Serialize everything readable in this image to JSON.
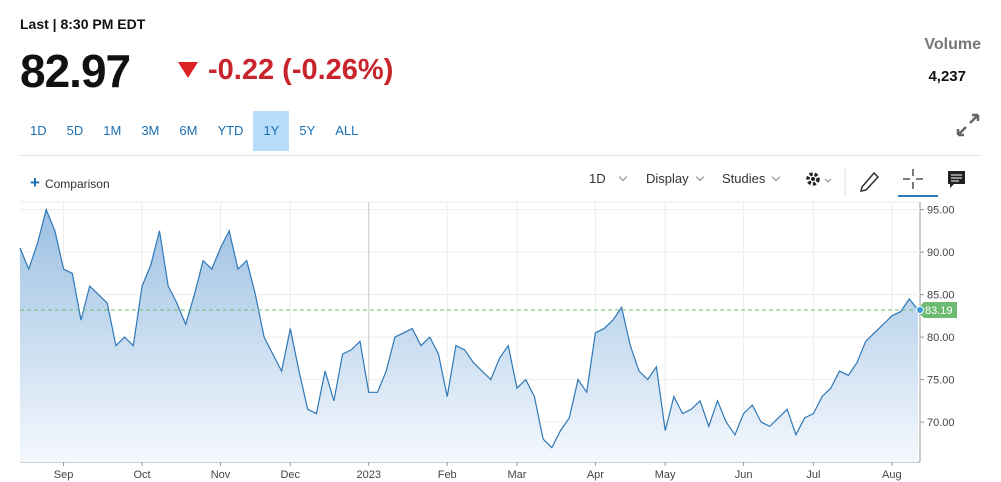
{
  "header": {
    "last": "Last | 8:30 PM EDT",
    "price": "82.97",
    "change": "-0.22 (-0.26%)",
    "volume_label": "Volume",
    "volume": "4,237",
    "ranges": [
      "1D",
      "5D",
      "1M",
      "3M",
      "6M",
      "YTD",
      "1Y",
      "5Y",
      "ALL"
    ],
    "selected_range": "1Y"
  },
  "toolbar": {
    "comparison": "Comparison",
    "interval": "1D",
    "display": "Display",
    "studies": "Studies"
  },
  "chart_data": {
    "type": "area",
    "color": "#2e78b7",
    "categories": [
      null,
      null,
      null,
      null,
      null,
      "Sep",
      null,
      null,
      null,
      null,
      null,
      null,
      null,
      null,
      "Oct",
      null,
      null,
      null,
      null,
      null,
      null,
      null,
      null,
      "Nov",
      null,
      null,
      null,
      null,
      null,
      null,
      null,
      "Dec",
      null,
      null,
      null,
      null,
      null,
      null,
      null,
      null,
      "2023",
      null,
      null,
      null,
      null,
      null,
      null,
      null,
      null,
      "Feb",
      null,
      null,
      null,
      null,
      null,
      null,
      null,
      "Mar",
      null,
      null,
      null,
      null,
      null,
      null,
      null,
      null,
      "Apr",
      null,
      null,
      null,
      null,
      null,
      null,
      null,
      "May",
      null,
      null,
      null,
      null,
      null,
      null,
      null,
      null,
      "Jun",
      null,
      null,
      null,
      null,
      null,
      null,
      null,
      "Jul",
      null,
      null,
      null,
      null,
      null,
      null,
      null,
      null,
      "Aug",
      null,
      null,
      null
    ],
    "values": [
      90.5,
      88,
      91,
      95,
      92.5,
      88,
      87.5,
      82,
      86,
      85,
      84,
      79,
      80,
      79,
      86,
      88.5,
      92.5,
      86,
      84,
      81.5,
      85,
      89,
      88,
      90.5,
      92.5,
      88,
      89,
      85,
      80,
      78,
      76,
      81,
      76,
      71.5,
      71,
      76,
      72.5,
      78,
      78.5,
      79.5,
      73.5,
      73.5,
      76,
      80,
      80.5,
      81,
      79,
      80,
      78,
      73,
      79,
      78.5,
      77,
      76,
      75,
      77.5,
      79,
      74,
      75,
      73,
      68,
      67,
      69,
      70.5,
      75,
      73.5,
      80.5,
      81,
      82,
      83.5,
      79,
      76,
      75,
      76.5,
      69,
      73,
      71,
      71.5,
      72.5,
      69.5,
      72.5,
      70,
      68.5,
      71,
      72,
      70,
      69.5,
      70.5,
      71.5,
      68.5,
      70.5,
      71,
      73,
      74,
      76,
      75.5,
      77,
      79.5,
      80.5,
      81.5,
      82.5,
      83,
      84.5,
      83.2
    ],
    "ylim": [
      65.3,
      95.9
    ],
    "yticks": [
      {
        "value": 70,
        "label": "70.00"
      },
      {
        "value": 75,
        "label": "75.00"
      },
      {
        "value": 80,
        "label": "80.00"
      },
      {
        "value": 85,
        "label": "85.00"
      },
      {
        "value": 90,
        "label": "90.00"
      },
      {
        "value": 95,
        "label": "95.00"
      }
    ],
    "last_value": 83.19,
    "last_color": "#6dbb72",
    "grid": true
  }
}
